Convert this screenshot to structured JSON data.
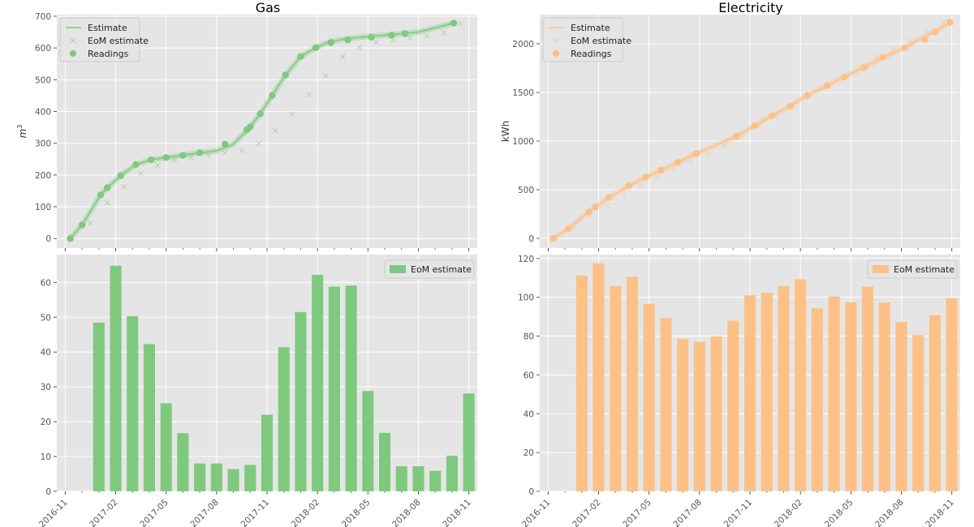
{
  "titles": {
    "gas": "Gas",
    "electricity": "Electricity"
  },
  "colors": {
    "gas": "#7fc97f",
    "electricity": "#fdc086",
    "panel_bg": "#e5e5e5",
    "grid": "#ffffff"
  },
  "chart_data": [
    {
      "id": "gas_cumulative",
      "type": "line",
      "title": "Gas",
      "ylabel": "m",
      "ylabel_superscript": "3",
      "xlim": [
        -0.5,
        24.5
      ],
      "ylim": [
        -30,
        705
      ],
      "yticks": [
        0,
        100,
        200,
        300,
        400,
        500,
        600,
        700
      ],
      "legend": [
        "Estimate",
        "EoM estimate",
        "Readings"
      ],
      "legend_position": "top-left",
      "series": [
        {
          "name": "Estimate",
          "x": [
            0.3,
            1,
            2.1,
            2.5,
            3.3,
            4.2,
            5.1,
            6,
            7,
            8,
            9,
            10,
            10.8,
            11,
            11.6,
            12.3,
            13.1,
            14,
            14.9,
            15.6,
            16.3,
            17.2,
            18.2,
            19,
            20,
            21,
            23.1
          ],
          "y": [
            0,
            43,
            137,
            160,
            198,
            233,
            248,
            255,
            262,
            270,
            276,
            297,
            340,
            352,
            393,
            450,
            515,
            573,
            601,
            617,
            625,
            632,
            637,
            640,
            645,
            650,
            678
          ]
        },
        {
          "name": "Readings",
          "x": [
            0.3,
            1,
            2.1,
            2.5,
            3.3,
            4.2,
            5.1,
            6,
            7,
            8,
            9.5,
            10.8,
            11,
            11.6,
            12.3,
            13.1,
            14,
            14.9,
            15.8,
            16.8,
            18.2,
            19.4,
            20.2,
            23.1
          ],
          "y": [
            0,
            43,
            137,
            160,
            198,
            233,
            248,
            255,
            262,
            270,
            297,
            343,
            352,
            393,
            450,
            515,
            573,
            601,
            617,
            625,
            634,
            640,
            645,
            678
          ]
        },
        {
          "name": "EoM estimate",
          "x": [
            1.5,
            2.5,
            3.5,
            4.5,
            5.5,
            6.5,
            7.5,
            8.5,
            9.5,
            10.5,
            11.5,
            12.5,
            13.5,
            14.5,
            15.5,
            16.5,
            17.5,
            18.5,
            19.5,
            20.5,
            21.5,
            22.5,
            23.5
          ],
          "y": [
            48,
            113,
            163,
            205,
            230,
            247,
            255,
            263,
            270,
            277,
            299,
            340,
            392,
            454,
            513,
            572,
            601,
            618,
            625,
            632,
            638,
            648,
            676
          ]
        }
      ]
    },
    {
      "id": "electricity_cumulative",
      "type": "line",
      "title": "Electricity",
      "ylabel": "kWh",
      "xlim": [
        -0.5,
        24.5
      ],
      "ylim": [
        -100,
        2300
      ],
      "yticks": [
        0,
        500,
        1000,
        1500,
        2000
      ],
      "legend": [
        "Estimate",
        "EoM estimate",
        "Readings"
      ],
      "legend_position": "top-left",
      "series": [
        {
          "name": "Estimate",
          "x": [
            0.3,
            1.2,
            2.4,
            2.8,
            3.6,
            4.8,
            5.8,
            6.7,
            7.7,
            8.8,
            10,
            11.2,
            12.3,
            13.3,
            14.4,
            15.4,
            16.6,
            17.6,
            18.8,
            19.9,
            21.2,
            22,
            22.9,
            23.9
          ],
          "y": [
            0,
            100,
            270,
            320,
            420,
            540,
            630,
            700,
            780,
            870,
            960,
            1050,
            1160,
            1260,
            1360,
            1470,
            1570,
            1660,
            1760,
            1860,
            1960,
            2040,
            2120,
            2220
          ]
        },
        {
          "name": "Readings",
          "x": [
            0.3,
            1.2,
            2.4,
            2.8,
            3.6,
            4.8,
            5.8,
            6.7,
            7.7,
            8.8,
            11.2,
            12.3,
            13.3,
            14.4,
            15.4,
            16.6,
            17.6,
            18.8,
            19.9,
            21.2,
            22.4,
            23,
            23.9
          ],
          "y": [
            0,
            100,
            270,
            320,
            420,
            540,
            630,
            700,
            780,
            870,
            1050,
            1160,
            1260,
            1360,
            1470,
            1570,
            1660,
            1760,
            1860,
            1960,
            2040,
            2120,
            2220
          ]
        },
        {
          "name": "EoM estimate",
          "x": [
            1.5,
            2.5,
            3.5,
            4.5,
            5.5,
            6.5,
            7.5,
            8.5,
            9.5,
            10.5,
            11.5,
            12.5,
            13.5,
            14.5,
            15.5,
            16.5,
            17.5,
            18.5,
            19.5,
            20.5,
            21.5,
            22.5,
            23.5
          ],
          "y": [
            111,
            228,
            334,
            444,
            540,
            629,
            707,
            784,
            863,
            951,
            1052,
            1154,
            1259,
            1368,
            1462,
            1562,
            1659,
            1764,
            1861,
            1948,
            2028,
            2119,
            2218
          ]
        }
      ]
    },
    {
      "id": "gas_monthly",
      "type": "bar",
      "ylim": [
        0,
        68
      ],
      "yticks": [
        0,
        10,
        20,
        30,
        40,
        50,
        60
      ],
      "xlim": [
        -0.5,
        24.5
      ],
      "legend": [
        "EoM estimate"
      ],
      "legend_position": "top-right",
      "x": [
        2,
        3,
        4,
        5,
        6,
        7,
        8,
        9,
        10,
        11,
        12,
        13,
        14,
        15,
        16,
        17,
        18,
        19,
        20,
        21,
        22,
        23,
        24
      ],
      "values": [
        48.5,
        64.8,
        50.3,
        42.3,
        25.3,
        16.7,
        8.0,
        8.0,
        6.4,
        7.6,
        22.0,
        41.4,
        51.5,
        62.2,
        58.8,
        59.1,
        28.8,
        16.8,
        7.2,
        7.2,
        5.9,
        10.2,
        28.1
      ]
    },
    {
      "id": "electricity_monthly",
      "type": "bar",
      "ylim": [
        0,
        122
      ],
      "yticks": [
        0,
        20,
        40,
        60,
        80,
        100,
        120
      ],
      "xlim": [
        -0.5,
        24.5
      ],
      "legend": [
        "EoM estimate"
      ],
      "legend_position": "top-right",
      "x": [
        2,
        3,
        4,
        5,
        6,
        7,
        8,
        9,
        10,
        11,
        12,
        13,
        14,
        15,
        16,
        17,
        18,
        19,
        20,
        21,
        22,
        23,
        24
      ],
      "values": [
        111.2,
        117.5,
        105.8,
        110.6,
        96.6,
        89.3,
        78.5,
        77.0,
        79.8,
        87.9,
        101.0,
        102.3,
        105.8,
        109.2,
        94.3,
        100.3,
        97.5,
        105.5,
        97.3,
        87.3,
        80.5,
        90.8,
        99.5
      ]
    }
  ],
  "x_axis": {
    "ticks": [
      {
        "pos": 0,
        "label": "2016-11"
      },
      {
        "pos": 3,
        "label": "2017-02"
      },
      {
        "pos": 6,
        "label": "2017-05"
      },
      {
        "pos": 9,
        "label": "2017-08"
      },
      {
        "pos": 12,
        "label": "2017-11"
      },
      {
        "pos": 15,
        "label": "2018-02"
      },
      {
        "pos": 18,
        "label": "2018-05"
      },
      {
        "pos": 21,
        "label": "2018-08"
      },
      {
        "pos": 24,
        "label": "2018-11"
      }
    ],
    "minor_every": 1
  }
}
